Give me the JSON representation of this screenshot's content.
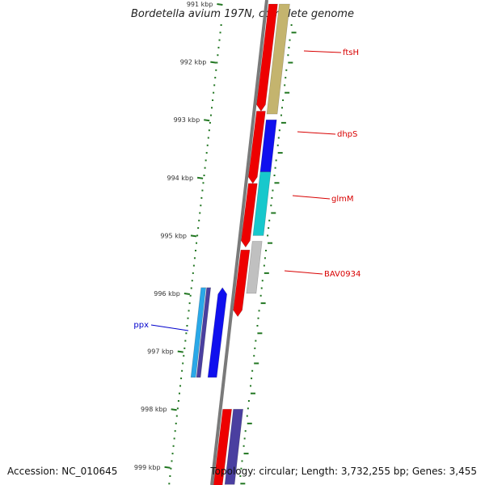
{
  "title": "Bordetella avium 197N, complete genome",
  "accession_label": "Accession: NC_010645",
  "summary_label": "Topology: circular; Length: 3,732,255 bp; Genes: 3,455",
  "ruler": {
    "ticks": [
      "991 kbp",
      "992 kbp",
      "993 kbp",
      "994 kbp",
      "995 kbp",
      "996 kbp",
      "997 kbp",
      "998 kbp",
      "999 kbp"
    ]
  },
  "genes": [
    {
      "name": "ftsH",
      "strand": "+",
      "start_kbp": 991.0,
      "end_kbp": 992.9,
      "color": "#c4b46e",
      "label_color": "#d80000"
    },
    {
      "name": "dhpS",
      "strand": "+",
      "start_kbp": 993.0,
      "end_kbp": 993.9,
      "color": "#1010ee",
      "label_color": "#d80000"
    },
    {
      "name": "glmM",
      "strand": "+",
      "start_kbp": 993.9,
      "end_kbp": 995.0,
      "color": "#18c8cc",
      "label_color": "#d80000"
    },
    {
      "name": "BAV0934",
      "strand": "+",
      "start_kbp": 995.1,
      "end_kbp": 996.0,
      "color": "#c0c0c0",
      "label_color": "#d80000"
    },
    {
      "name": "",
      "strand": "-",
      "start_kbp": 995.9,
      "end_kbp": 997.45,
      "color": "#1010ee",
      "label_color": ""
    },
    {
      "name": "",
      "strand": "-",
      "start_kbp": 995.9,
      "end_kbp": 997.45,
      "color": "#4a3fa0",
      "label_color": ""
    },
    {
      "name": "ppx",
      "strand": "-",
      "start_kbp": 995.9,
      "end_kbp": 997.45,
      "color": "#2aa8e8",
      "label_color": "#0000cc"
    },
    {
      "name": "",
      "strand": "+",
      "start_kbp": 998.0,
      "end_kbp": 999.3,
      "color": "#4a3fa0",
      "label_color": ""
    }
  ],
  "colors": {
    "cds_forward": "#ee0000",
    "backbone": "#7a7a7a",
    "gc_skew": "#227722"
  }
}
